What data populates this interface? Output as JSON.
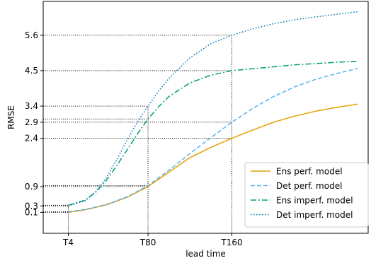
{
  "chart_data": {
    "type": "line",
    "xlabel": "lead time",
    "ylabel": "RMSE",
    "x_ticks": [
      {
        "label": "T4",
        "value": 4
      },
      {
        "label": "T80",
        "value": 80
      },
      {
        "label": "T160",
        "value": 160
      }
    ],
    "y_ticks": [
      0.1,
      0.3,
      0.9,
      2.4,
      2.9,
      3.4,
      4.5,
      5.6
    ],
    "xlim": [
      -20,
      290
    ],
    "ylim": [
      -0.55,
      6.65
    ],
    "grid": false,
    "legend_position": "lower right",
    "reference_lines": {
      "vertical": [
        4,
        80,
        160
      ],
      "horizontal": [
        {
          "y": 0.1,
          "x_end": 4
        },
        {
          "y": 0.12,
          "x_end": 4
        },
        {
          "y": 0.3,
          "x_end": 4
        },
        {
          "y": 0.32,
          "x_end": 4
        },
        {
          "y": 0.9,
          "x_end": 80
        },
        {
          "y": 0.93,
          "x_end": 80
        },
        {
          "y": 2.4,
          "x_end": 160
        },
        {
          "y": 2.9,
          "x_end": 160
        },
        {
          "y": 3.0,
          "x_end": 80
        },
        {
          "y": 3.4,
          "x_end": 80
        },
        {
          "y": 4.5,
          "x_end": 160
        },
        {
          "y": 5.6,
          "x_end": 160
        }
      ]
    },
    "series": [
      {
        "name": "Ens perf. model",
        "color": "#E69F00",
        "dash": "solid",
        "x": [
          4,
          20,
          40,
          60,
          80,
          100,
          120,
          140,
          160,
          180,
          200,
          220,
          240,
          260,
          280
        ],
        "y": [
          0.1,
          0.18,
          0.33,
          0.57,
          0.9,
          1.35,
          1.8,
          2.12,
          2.4,
          2.66,
          2.9,
          3.09,
          3.24,
          3.36,
          3.46
        ]
      },
      {
        "name": "Det perf. model",
        "color": "#56B4E9",
        "dash": "dashed",
        "x": [
          4,
          20,
          40,
          60,
          80,
          100,
          120,
          140,
          160,
          180,
          200,
          220,
          240,
          260,
          280
        ],
        "y": [
          0.12,
          0.19,
          0.34,
          0.58,
          0.93,
          1.41,
          1.93,
          2.42,
          2.9,
          3.33,
          3.7,
          4.0,
          4.23,
          4.41,
          4.57
        ]
      },
      {
        "name": "Ens imperf. model",
        "color": "#009E73",
        "dash": "dashdot",
        "x": [
          4,
          20,
          30,
          40,
          50,
          60,
          70,
          80,
          90,
          100,
          120,
          140,
          160,
          180,
          200,
          220,
          240,
          260,
          280
        ],
        "y": [
          0.32,
          0.48,
          0.72,
          1.08,
          1.54,
          2.04,
          2.54,
          3.0,
          3.38,
          3.7,
          4.12,
          4.36,
          4.5,
          4.56,
          4.62,
          4.68,
          4.72,
          4.76,
          4.79
        ]
      },
      {
        "name": "Det imperf. model",
        "color": "#0072B2",
        "dash": "dotted",
        "x": [
          4,
          20,
          30,
          40,
          50,
          60,
          70,
          80,
          90,
          100,
          120,
          140,
          160,
          180,
          200,
          220,
          240,
          260,
          280
        ],
        "y": [
          0.3,
          0.46,
          0.74,
          1.16,
          1.72,
          2.34,
          2.92,
          3.4,
          3.86,
          4.26,
          4.9,
          5.34,
          5.6,
          5.8,
          5.96,
          6.08,
          6.17,
          6.25,
          6.33
        ]
      }
    ]
  }
}
